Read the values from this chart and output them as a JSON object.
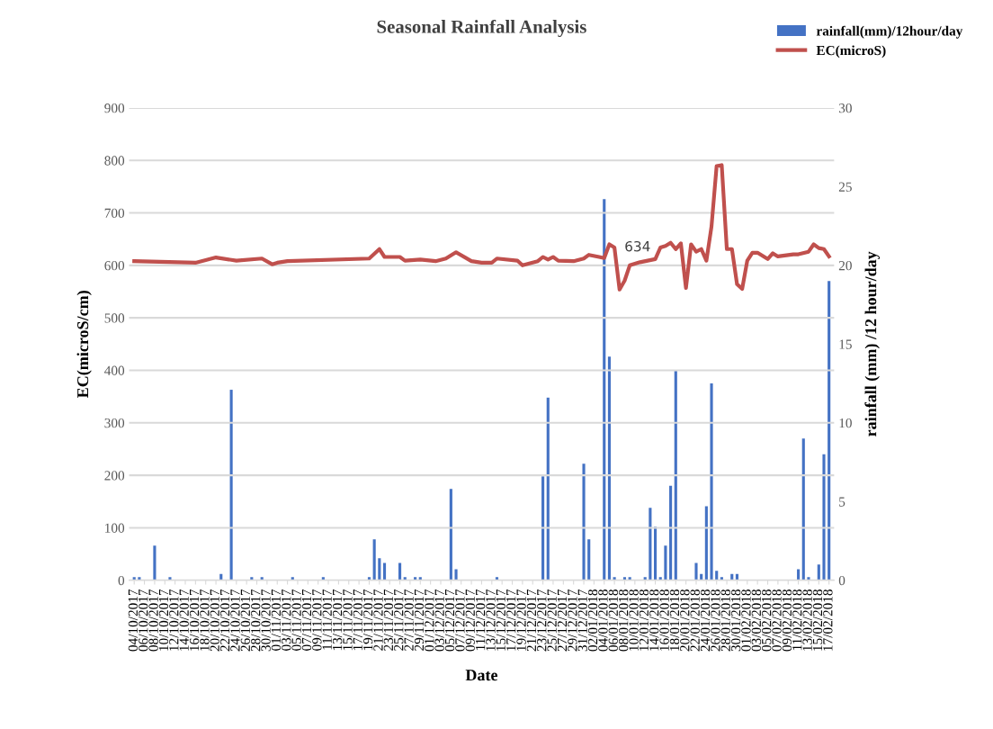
{
  "chart_data": {
    "type": "line",
    "title": "Seasonal Rainfall Analysis",
    "xlabel": "Date",
    "ylabel": "EC(microS/cm)",
    "y2label": "rainfall (mm) /12 hour/day",
    "series": [
      {
        "name": "rainfall(mm)/12hour/day",
        "type": "bar",
        "axis": "y2",
        "color": "#4472c4",
        "x": [
          "2017-10-04",
          "2017-10-05",
          "2017-10-08",
          "2017-10-11",
          "2017-10-21",
          "2017-10-23",
          "2017-10-27",
          "2017-10-29",
          "2017-11-04",
          "2017-11-10",
          "2017-11-19",
          "2017-11-20",
          "2017-11-21",
          "2017-11-22",
          "2017-11-25",
          "2017-11-26",
          "2017-11-28",
          "2017-11-29",
          "2017-12-05",
          "2017-12-06",
          "2017-12-14",
          "2017-12-23",
          "2017-12-24",
          "2017-12-31",
          "2018-01-01",
          "2018-01-04",
          "2018-01-05",
          "2018-01-06",
          "2018-01-08",
          "2018-01-09",
          "2018-01-12",
          "2018-01-13",
          "2018-01-14",
          "2018-01-15",
          "2018-01-16",
          "2018-01-17",
          "2018-01-18",
          "2018-01-22",
          "2018-01-23",
          "2018-01-24",
          "2018-01-25",
          "2018-01-26",
          "2018-01-27",
          "2018-01-29",
          "2018-01-30",
          "2018-02-11",
          "2018-02-12",
          "2018-02-13",
          "2018-02-15",
          "2018-02-16",
          "2018-02-17"
        ],
        "values": [
          0.2,
          0.2,
          2.2,
          0.2,
          0.4,
          12.1,
          0.2,
          0.2,
          0.2,
          0.2,
          0.2,
          2.6,
          1.4,
          1.1,
          1.1,
          0.2,
          0.2,
          0.2,
          5.8,
          0.7,
          0.2,
          6.6,
          11.6,
          7.4,
          2.6,
          24.2,
          14.2,
          0.2,
          0.2,
          0.2,
          0.2,
          4.6,
          3.4,
          0.2,
          2.2,
          6,
          13.3,
          1.1,
          0.4,
          4.7,
          12.5,
          0.6,
          0.2,
          0.4,
          0.4,
          0.7,
          9,
          0.2,
          1,
          8,
          19
        ]
      },
      {
        "name": "EC(microS)",
        "axis": "y",
        "color": "#c0504d",
        "x": [
          "2017-10-04",
          "2017-10-16",
          "2017-10-20",
          "2017-10-24",
          "2017-10-29",
          "2017-10-31",
          "2017-11-01",
          "2017-11-03",
          "2017-11-19",
          "2017-11-21",
          "2017-11-22",
          "2017-11-25",
          "2017-11-26",
          "2017-11-29",
          "2017-12-02",
          "2017-12-04",
          "2017-12-06",
          "2017-12-09",
          "2017-12-11",
          "2017-12-13",
          "2017-12-14",
          "2017-12-18",
          "2017-12-19",
          "2017-12-22",
          "2017-12-23",
          "2017-12-24",
          "2017-12-25",
          "2017-12-26",
          "2017-12-29",
          "2017-12-31",
          "2018-01-01",
          "2018-01-03",
          "2018-01-04",
          "2018-01-05",
          "2018-01-06",
          "2018-01-07",
          "2018-01-08",
          "2018-01-09",
          "2018-01-11",
          "2018-01-14",
          "2018-01-15",
          "2018-01-16",
          "2018-01-17",
          "2018-01-18",
          "2018-01-19",
          "2018-01-20",
          "2018-01-21",
          "2018-01-22",
          "2018-01-23",
          "2018-01-24",
          "2018-01-25",
          "2018-01-26",
          "2018-01-27",
          "2018-01-28",
          "2018-01-29",
          "2018-01-30",
          "2018-01-31",
          "2018-02-01",
          "2018-02-02",
          "2018-02-03",
          "2018-02-05",
          "2018-02-06",
          "2018-02-07",
          "2018-02-10",
          "2018-02-11",
          "2018-02-13",
          "2018-02-14",
          "2018-02-15",
          "2018-02-16",
          "2018-02-17"
        ],
        "values": [
          608,
          605,
          615,
          609,
          613,
          602,
          605,
          608,
          613,
          631,
          616,
          616,
          609,
          611,
          608,
          613,
          625,
          608,
          605,
          605,
          613,
          609,
          600,
          608,
          616,
          611,
          616,
          609,
          608,
          613,
          620,
          616,
          614,
          640,
          634,
          554,
          571,
          600,
          606,
          612,
          634,
          637,
          643,
          631,
          642,
          557,
          640,
          626,
          631,
          609,
          674,
          789,
          791,
          631,
          631,
          564,
          555,
          609,
          624,
          624,
          612,
          623,
          617,
          621,
          621,
          626,
          640,
          633,
          631,
          617
        ]
      }
    ],
    "annotations": [
      {
        "text": "634",
        "x": "2018-01-06",
        "y": 634
      }
    ],
    "xlim": [
      "2017-10-03",
      "2018-02-18"
    ],
    "xticks": [
      {
        "value": "2017-10-04",
        "label": "04/10/2017"
      },
      {
        "value": "2017-10-06",
        "label": "06/10/2017"
      },
      {
        "value": "2017-10-08",
        "label": "08/10/2017"
      },
      {
        "value": "2017-10-10",
        "label": "10/10/2017"
      },
      {
        "value": "2017-10-12",
        "label": "12/10/2017"
      },
      {
        "value": "2017-10-14",
        "label": "14/10/2017"
      },
      {
        "value": "2017-10-16",
        "label": "16/10/2017"
      },
      {
        "value": "2017-10-18",
        "label": "18/10/2017"
      },
      {
        "value": "2017-10-20",
        "label": "20/10/2017"
      },
      {
        "value": "2017-10-22",
        "label": "22/10/2017"
      },
      {
        "value": "2017-10-24",
        "label": "24/10/2017"
      },
      {
        "value": "2017-10-26",
        "label": "26/10/2017"
      },
      {
        "value": "2017-10-28",
        "label": "28/10/2017"
      },
      {
        "value": "2017-10-30",
        "label": "30/10/2017"
      },
      {
        "value": "2017-11-01",
        "label": "01/11/2017"
      },
      {
        "value": "2017-11-03",
        "label": "03/11/2017"
      },
      {
        "value": "2017-11-05",
        "label": "05/11/2017"
      },
      {
        "value": "2017-11-07",
        "label": "07/11/2017"
      },
      {
        "value": "2017-11-09",
        "label": "09/11/2017"
      },
      {
        "value": "2017-11-11",
        "label": "11/11/2017"
      },
      {
        "value": "2017-11-13",
        "label": "13/11/2017"
      },
      {
        "value": "2017-11-15",
        "label": "15/11/2017"
      },
      {
        "value": "2017-11-17",
        "label": "17/11/2017"
      },
      {
        "value": "2017-11-19",
        "label": "19/11/2017"
      },
      {
        "value": "2017-11-21",
        "label": "21/11/2017"
      },
      {
        "value": "2017-11-23",
        "label": "23/11/2017"
      },
      {
        "value": "2017-11-25",
        "label": "25/11/2017"
      },
      {
        "value": "2017-11-27",
        "label": "27/11/2017"
      },
      {
        "value": "2017-11-29",
        "label": "29/11/2017"
      },
      {
        "value": "2017-12-01",
        "label": "01/12/2017"
      },
      {
        "value": "2017-12-03",
        "label": "03/12/2017"
      },
      {
        "value": "2017-12-05",
        "label": "05/12/2017"
      },
      {
        "value": "2017-12-07",
        "label": "07/12/2017"
      },
      {
        "value": "2017-12-09",
        "label": "09/12/2017"
      },
      {
        "value": "2017-12-11",
        "label": "11/12/2017"
      },
      {
        "value": "2017-12-13",
        "label": "13/12/2017"
      },
      {
        "value": "2017-12-15",
        "label": "15/12/2017"
      },
      {
        "value": "2017-12-17",
        "label": "17/12/2017"
      },
      {
        "value": "2017-12-19",
        "label": "19/12/2017"
      },
      {
        "value": "2017-12-21",
        "label": "21/12/2017"
      },
      {
        "value": "2017-12-23",
        "label": "23/12/2017"
      },
      {
        "value": "2017-12-25",
        "label": "25/12/2017"
      },
      {
        "value": "2017-12-27",
        "label": "27/12/2017"
      },
      {
        "value": "2017-12-29",
        "label": "29/12/2017"
      },
      {
        "value": "2017-12-31",
        "label": "31/12/2017"
      },
      {
        "value": "2018-01-02",
        "label": "02/01/2018"
      },
      {
        "value": "2018-01-04",
        "label": "04/01/2018"
      },
      {
        "value": "2018-01-06",
        "label": "06/01/2018"
      },
      {
        "value": "2018-01-08",
        "label": "08/01/2018"
      },
      {
        "value": "2018-01-10",
        "label": "10/01/2018"
      },
      {
        "value": "2018-01-12",
        "label": "12/01/2018"
      },
      {
        "value": "2018-01-14",
        "label": "14/01/2018"
      },
      {
        "value": "2018-01-16",
        "label": "16/01/2018"
      },
      {
        "value": "2018-01-18",
        "label": "18/01/2018"
      },
      {
        "value": "2018-01-20",
        "label": "20/01/2018"
      },
      {
        "value": "2018-01-22",
        "label": "22/01/2018"
      },
      {
        "value": "2018-01-24",
        "label": "24/01/2018"
      },
      {
        "value": "2018-01-26",
        "label": "26/01/2018"
      },
      {
        "value": "2018-01-28",
        "label": "28/01/2018"
      },
      {
        "value": "2018-01-30",
        "label": "30/01/2018"
      },
      {
        "value": "2018-02-01",
        "label": "01/02/2018"
      },
      {
        "value": "2018-02-03",
        "label": "03/02/2018"
      },
      {
        "value": "2018-02-05",
        "label": "05/02/2018"
      },
      {
        "value": "2018-02-07",
        "label": "07/02/2018"
      },
      {
        "value": "2018-02-09",
        "label": "09/02/2018"
      },
      {
        "value": "2018-02-11",
        "label": "11/02/2018"
      },
      {
        "value": "2018-02-13",
        "label": "13/02/2018"
      },
      {
        "value": "2018-02-15",
        "label": "15/02/2018"
      },
      {
        "value": "2018-02-17",
        "label": "17/02/2018"
      }
    ],
    "ylim": [
      0,
      900
    ],
    "yticks": [
      0,
      100,
      200,
      300,
      400,
      500,
      600,
      700,
      800,
      900
    ],
    "y2lim": [
      0,
      30
    ],
    "y2ticks": [
      0,
      5,
      10,
      15,
      20,
      25,
      30
    ],
    "grid": "y",
    "legend": "top right",
    "marker": "none",
    "line_style": "solid"
  }
}
